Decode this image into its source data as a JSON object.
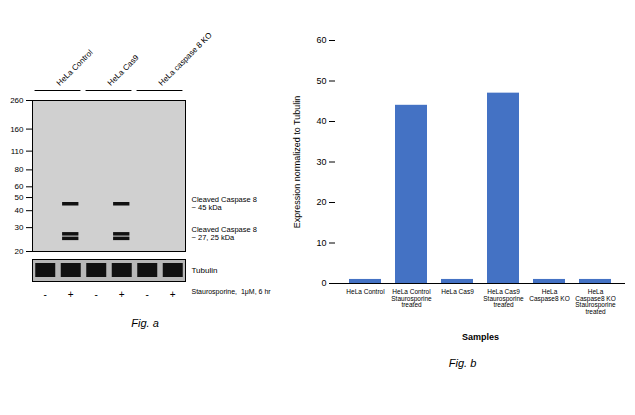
{
  "chart_data": [
    {
      "type": "blot",
      "categories": [
        "-",
        "+",
        "-",
        "+",
        "-",
        "+"
      ],
      "xlabel": "Staurosporine,  1μM, 6 hr",
      "ylim": [
        20,
        260
      ],
      "yticks": [
        260,
        160,
        110,
        80,
        60,
        50,
        40,
        30,
        20
      ],
      "log": "y",
      "groups": [
        {
          "label": "HeLa Control",
          "lanes": [
            0,
            1
          ]
        },
        {
          "label": "HeLa Cas9",
          "lanes": [
            2,
            3
          ]
        },
        {
          "label": "HeLa caspase 8 KO",
          "lanes": [
            4,
            5
          ]
        }
      ],
      "bands": [
        {
          "y": 45,
          "lanes": [
            1,
            3
          ]
        },
        {
          "y": 27,
          "lanes": [
            1,
            3
          ]
        },
        {
          "y": 25,
          "lanes": [
            1,
            3
          ]
        }
      ],
      "annotations": [
        {
          "text": "Cleaved Caspase 8\n~ 45 kDa",
          "y": 45
        },
        {
          "text": "Cleaved Caspase 8\n~ 27, 25 kDa",
          "y": 27
        }
      ],
      "tubulin_label": "Tubulin",
      "color": "#111111",
      "caption": "Fig. a"
    },
    {
      "type": "bar",
      "categories": [
        "HeLa Control",
        "HeLa Control\nStaurosporine\ntreated",
        "HeLa Cas9",
        "HeLa Cas9\nStaurosporine\ntreated",
        "HeLa\nCaspase8 KO",
        "HeLa\nCaspase8 KO\nStaurosporine\ntreated"
      ],
      "values": [
        1.0,
        44,
        1.0,
        47,
        1.0,
        1.0
      ],
      "color": "#4472C4",
      "xlabel": "Samples",
      "ylabel": "Expression normalized to Tubulin",
      "ylim": [
        0,
        60
      ],
      "yticks": [
        0,
        10,
        20,
        30,
        40,
        50,
        60
      ],
      "grid": false,
      "caption": "Fig. b"
    }
  ]
}
